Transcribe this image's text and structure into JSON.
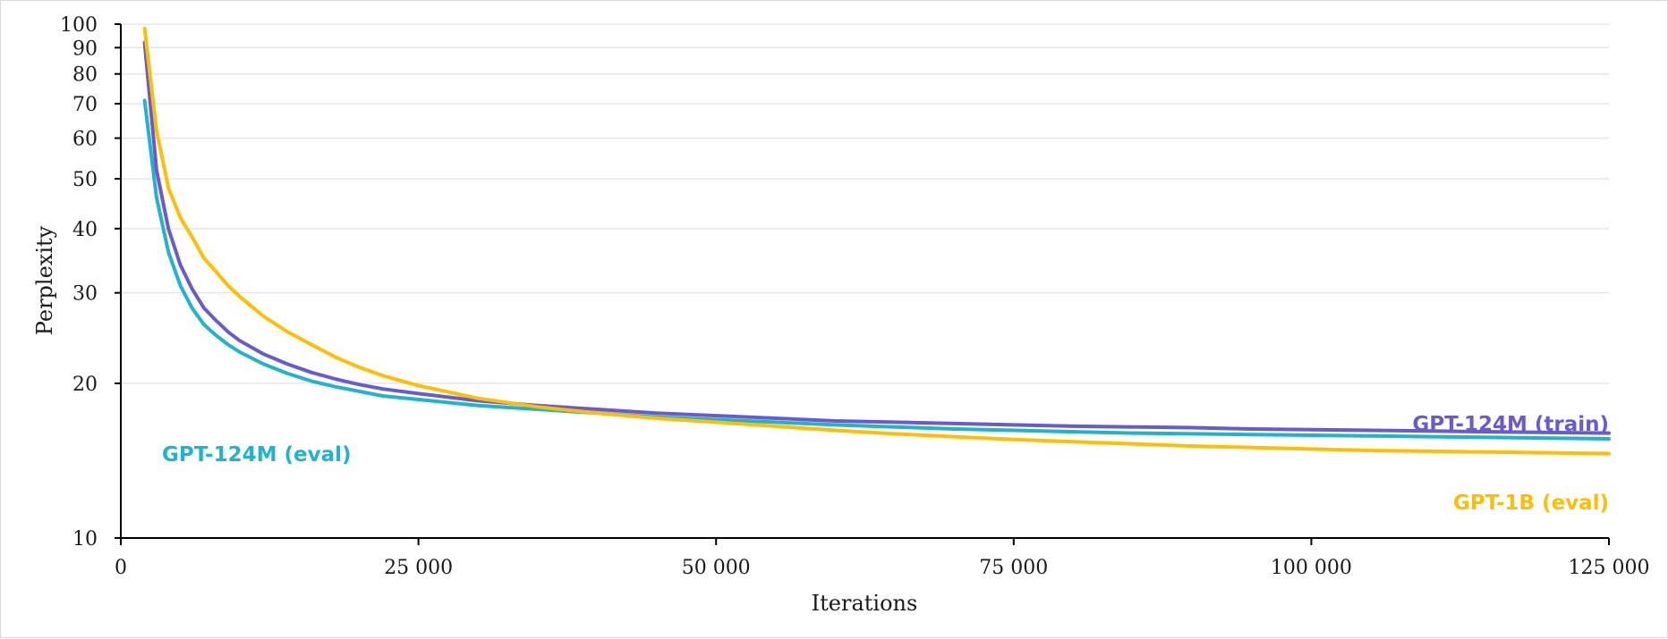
{
  "chart_data": {
    "type": "line",
    "title": "",
    "xlabel": "Iterations",
    "ylabel": "Perplexity",
    "xlim": [
      0,
      125000
    ],
    "ylim": [
      10,
      100
    ],
    "y_scale": "log",
    "grid": "horizontal",
    "x_ticks": [
      0,
      25000,
      50000,
      75000,
      100000,
      125000
    ],
    "x_tick_labels": [
      "0",
      "25 000",
      "50 000",
      "75 000",
      "100 000",
      "125 000"
    ],
    "y_tick_values": [
      10,
      20,
      30,
      40,
      50,
      60,
      70,
      80,
      90,
      100
    ],
    "y_tick_labels": [
      "10",
      "20",
      "30",
      "40",
      "50",
      "60",
      "70",
      "80",
      "90",
      "100"
    ],
    "legend": "inline labels",
    "series": [
      {
        "name": "GPT-124M (train)",
        "color": "#6a5acd",
        "x": [
          2000,
          3000,
          4000,
          5000,
          6000,
          7000,
          8000,
          9000,
          10000,
          12000,
          14000,
          16000,
          18000,
          20000,
          22000,
          25000,
          30000,
          35000,
          40000,
          45000,
          50000,
          55000,
          60000,
          65000,
          70000,
          75000,
          80000,
          85000,
          90000,
          95000,
          100000,
          105000,
          110000,
          115000,
          120000,
          125000
        ],
        "y": [
          92,
          52,
          40,
          34,
          30.5,
          28,
          26.5,
          25.2,
          24.2,
          22.8,
          21.8,
          21,
          20.4,
          19.9,
          19.5,
          19.1,
          18.5,
          18.1,
          17.8,
          17.5,
          17.3,
          17.1,
          16.9,
          16.8,
          16.7,
          16.6,
          16.5,
          16.45,
          16.4,
          16.3,
          16.25,
          16.2,
          16.15,
          16.1,
          16.05,
          16.0
        ]
      },
      {
        "name": "GPT-124M (eval)",
        "color": "#1fb3cc",
        "x": [
          2000,
          3000,
          4000,
          5000,
          6000,
          7000,
          8000,
          9000,
          10000,
          12000,
          14000,
          16000,
          18000,
          20000,
          22000,
          25000,
          30000,
          35000,
          40000,
          45000,
          50000,
          55000,
          60000,
          65000,
          70000,
          75000,
          80000,
          85000,
          90000,
          95000,
          100000,
          105000,
          110000,
          115000,
          120000,
          125000
        ],
        "y": [
          71,
          46,
          36,
          31,
          28,
          26,
          24.8,
          23.8,
          23,
          21.8,
          20.9,
          20.2,
          19.7,
          19.3,
          18.9,
          18.6,
          18.1,
          17.8,
          17.5,
          17.2,
          17.0,
          16.8,
          16.6,
          16.45,
          16.3,
          16.2,
          16.1,
          16.0,
          15.95,
          15.9,
          15.85,
          15.8,
          15.75,
          15.7,
          15.65,
          15.6
        ]
      },
      {
        "name": "GPT-1B (eval)",
        "color": "#ffbf00",
        "x": [
          2000,
          3000,
          4000,
          5000,
          6000,
          7000,
          8000,
          9000,
          10000,
          12000,
          14000,
          16000,
          18000,
          20000,
          22000,
          25000,
          30000,
          35000,
          40000,
          45000,
          50000,
          55000,
          60000,
          65000,
          70000,
          75000,
          80000,
          85000,
          90000,
          95000,
          100000,
          105000,
          110000,
          115000,
          120000,
          125000
        ],
        "y": [
          98,
          62,
          48,
          42,
          38.5,
          35,
          33,
          31,
          29.5,
          27,
          25.2,
          23.8,
          22.5,
          21.5,
          20.7,
          19.8,
          18.7,
          18.0,
          17.5,
          17.1,
          16.8,
          16.5,
          16.2,
          15.95,
          15.75,
          15.55,
          15.4,
          15.25,
          15.1,
          15.0,
          14.9,
          14.8,
          14.75,
          14.7,
          14.65,
          14.6
        ]
      }
    ]
  }
}
